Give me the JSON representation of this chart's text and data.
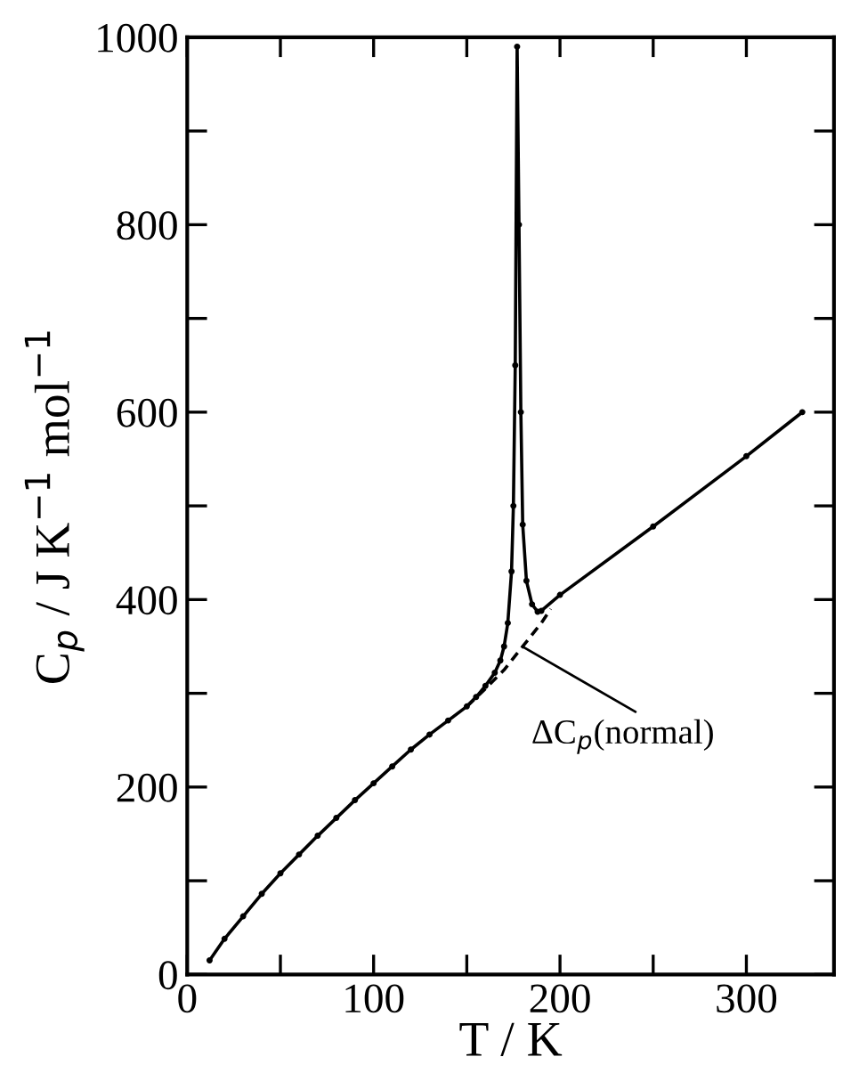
{
  "chart_data": {
    "type": "line",
    "xlabel": "T / K",
    "ylabel": "C$_{p}$ / J K$^{−1}$ mol$^{−1}$",
    "series": [
      {
        "color": "#000000",
        "marker": "circle",
        "line_style": "solid",
        "x": [
          12,
          20,
          30,
          40,
          50,
          60,
          70,
          80,
          90,
          100,
          110,
          120,
          130,
          140,
          150,
          155,
          160,
          165,
          168,
          170,
          172,
          174,
          175,
          176,
          177,
          178,
          179,
          180,
          182,
          185,
          188,
          190,
          200,
          250,
          300,
          330
        ],
        "values": [
          15,
          38,
          62,
          86,
          108,
          128,
          148,
          167,
          186,
          204,
          222,
          240,
          256,
          271,
          286,
          296,
          308,
          322,
          335,
          350,
          375,
          430,
          500,
          650,
          990,
          800,
          600,
          480,
          420,
          395,
          387,
          388,
          405,
          478,
          553,
          600
        ]
      },
      {
        "color": "#000000",
        "marker": "none",
        "line_style": "dashed",
        "x": [
          150,
          160,
          170,
          180,
          190,
          195
        ],
        "values": [
          286,
          305,
          325,
          350,
          375,
          390
        ]
      }
    ],
    "annotations": [
      {
        "text": "ΔC$_{p}$(normal)",
        "x": 178,
        "y": 352
      }
    ],
    "xlim": [
      0,
      347
    ],
    "ylim": [
      0,
      1000
    ],
    "xticks": [
      0,
      {
        "value": 50,
        "label": null
      },
      100,
      {
        "value": 150,
        "label": null
      },
      200,
      {
        "value": 250,
        "label": null
      },
      300
    ],
    "yticks": [
      0,
      {
        "value": 100,
        "label": null
      },
      200,
      {
        "value": 300,
        "label": null
      },
      400,
      {
        "value": 500,
        "label": null
      },
      600,
      {
        "value": 700,
        "label": null
      },
      800,
      {
        "value": 900,
        "label": null
      },
      1000
    ],
    "grid": false,
    "legend": false
  }
}
